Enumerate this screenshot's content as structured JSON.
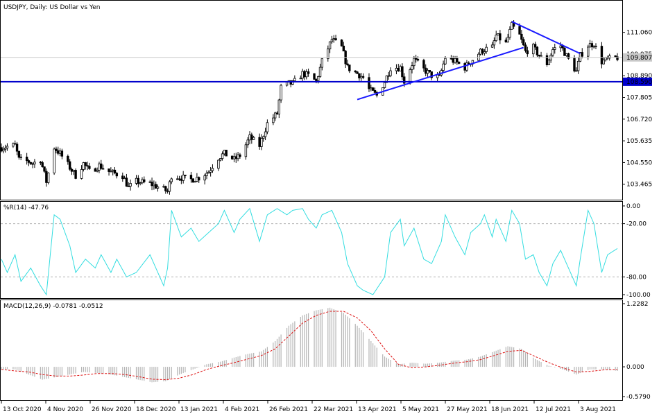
{
  "chart_data": [
    {
      "type": "candlestick",
      "symbol": "USDJPY",
      "timeframe": "Daily",
      "title": "USDJPY, Daily:  US Dollar vs Yen",
      "ylim": [
        102.9,
        112.4
      ],
      "yticks": [
        "111.060",
        "109.975",
        "108.890",
        "107.805",
        "106.720",
        "105.635",
        "104.550",
        "103.465"
      ],
      "current_price": "109.807",
      "horizontal_level": "108.590",
      "x_date_labels": [
        "13 Oct 2020",
        "4 Nov 2020",
        "26 Nov 2020",
        "18 Dec 2020",
        "13 Jan 2021",
        "4 Feb 2021",
        "26 Feb 2021",
        "22 Mar 2021",
        "13 Apr 2021",
        "5 May 2021",
        "27 May 2021",
        "18 Jun 2021",
        "12 Jul 2021",
        "3 Aug 2021"
      ],
      "close_points": [
        [
          "2020-10-13",
          105.3
        ],
        [
          "2020-10-16",
          105.35
        ],
        [
          "2020-10-20",
          105.4
        ],
        [
          "2020-10-22",
          104.7
        ],
        [
          "2020-10-27",
          104.6
        ],
        [
          "2020-10-29",
          104.5
        ],
        [
          "2020-11-02",
          104.7
        ],
        [
          "2020-11-05",
          103.6
        ],
        [
          "2020-11-09",
          105.3
        ],
        [
          "2020-11-12",
          105.0
        ],
        [
          "2020-11-17",
          104.3
        ],
        [
          "2020-11-20",
          103.9
        ],
        [
          "2020-11-24",
          104.5
        ],
        [
          "2020-11-27",
          104.1
        ],
        [
          "2020-12-02",
          104.4
        ],
        [
          "2020-12-07",
          104.1
        ],
        [
          "2020-12-10",
          104.0
        ],
        [
          "2020-12-14",
          103.9
        ],
        [
          "2020-12-17",
          103.3
        ],
        [
          "2020-12-21",
          103.6
        ],
        [
          "2020-12-28",
          103.5
        ],
        [
          "2021-01-04",
          103.2
        ],
        [
          "2021-01-06",
          103.1
        ],
        [
          "2021-01-08",
          103.9
        ],
        [
          "2021-01-13",
          103.8
        ],
        [
          "2021-01-18",
          103.7
        ],
        [
          "2021-01-22",
          103.8
        ],
        [
          "2021-01-27",
          104.1
        ],
        [
          "2021-02-01",
          104.8
        ],
        [
          "2021-02-04",
          105.0
        ],
        [
          "2021-02-09",
          104.7
        ],
        [
          "2021-02-12",
          104.9
        ],
        [
          "2021-02-17",
          105.8
        ],
        [
          "2021-02-22",
          105.4
        ],
        [
          "2021-02-26",
          106.5
        ],
        [
          "2021-03-03",
          107.0
        ],
        [
          "2021-03-05",
          108.3
        ],
        [
          "2021-03-09",
          108.5
        ],
        [
          "2021-03-11",
          108.5
        ],
        [
          "2021-03-16",
          109.0
        ],
        [
          "2021-03-19",
          108.9
        ],
        [
          "2021-03-23",
          108.6
        ],
        [
          "2021-03-26",
          109.6
        ],
        [
          "2021-03-31",
          110.7
        ],
        [
          "2021-04-05",
          110.3
        ],
        [
          "2021-04-08",
          109.3
        ],
        [
          "2021-04-13",
          109.0
        ],
        [
          "2021-04-16",
          108.8
        ],
        [
          "2021-04-19",
          108.2
        ],
        [
          "2021-04-23",
          107.9
        ],
        [
          "2021-04-27",
          108.6
        ],
        [
          "2021-04-30",
          109.3
        ],
        [
          "2021-05-05",
          109.3
        ],
        [
          "2021-05-07",
          108.6
        ],
        [
          "2021-05-12",
          109.7
        ],
        [
          "2021-05-17",
          109.2
        ],
        [
          "2021-05-21",
          108.9
        ],
        [
          "2021-05-25",
          108.8
        ],
        [
          "2021-05-28",
          109.8
        ],
        [
          "2021-06-02",
          109.6
        ],
        [
          "2021-06-07",
          109.3
        ],
        [
          "2021-06-10",
          109.6
        ],
        [
          "2021-06-15",
          110.1
        ],
        [
          "2021-06-17",
          110.2
        ],
        [
          "2021-06-21",
          110.3
        ],
        [
          "2021-06-23",
          110.9
        ],
        [
          "2021-06-28",
          110.5
        ],
        [
          "2021-07-01",
          111.4
        ],
        [
          "2021-07-05",
          110.9
        ],
        [
          "2021-07-08",
          110.1
        ],
        [
          "2021-07-12",
          110.3
        ],
        [
          "2021-07-15",
          109.9
        ],
        [
          "2021-07-19",
          109.5
        ],
        [
          "2021-07-22",
          110.2
        ],
        [
          "2021-07-26",
          110.4
        ],
        [
          "2021-07-30",
          109.7
        ],
        [
          "2021-08-03",
          109.1
        ],
        [
          "2021-08-05",
          109.9
        ],
        [
          "2021-08-09",
          110.4
        ],
        [
          "2021-08-12",
          110.5
        ],
        [
          "2021-08-16",
          109.6
        ],
        [
          "2021-08-19",
          109.7
        ],
        [
          "2021-08-24",
          109.8
        ]
      ],
      "trendlines": [
        {
          "from": [
            "2021-04-13",
            107.7
          ],
          "to": [
            "2021-07-07",
            110.3
          ]
        },
        {
          "from": [
            "2021-07-01",
            111.6
          ],
          "to": [
            "2021-08-05",
            110.0
          ]
        }
      ]
    },
    {
      "type": "line",
      "indicator": "%R(14)",
      "label": "%R(14) -47.76",
      "current_value": "-47.76",
      "ylim": [
        -100,
        0
      ],
      "ytick_labels": [
        "0.00",
        "-20.00",
        "-80.00",
        "-100.00"
      ],
      "levels": [
        -20,
        -80
      ],
      "points": [
        [
          "2020-10-13",
          -60
        ],
        [
          "2020-10-16",
          -75
        ],
        [
          "2020-10-20",
          -55
        ],
        [
          "2020-10-23",
          -85
        ],
        [
          "2020-10-28",
          -70
        ],
        [
          "2020-11-02",
          -90
        ],
        [
          "2020-11-05",
          -100
        ],
        [
          "2020-11-09",
          -10
        ],
        [
          "2020-11-12",
          -15
        ],
        [
          "2020-11-17",
          -45
        ],
        [
          "2020-11-20",
          -75
        ],
        [
          "2020-11-25",
          -60
        ],
        [
          "2020-11-30",
          -70
        ],
        [
          "2020-12-03",
          -55
        ],
        [
          "2020-12-08",
          -75
        ],
        [
          "2020-12-11",
          -60
        ],
        [
          "2020-12-16",
          -80
        ],
        [
          "2020-12-21",
          -75
        ],
        [
          "2020-12-28",
          -55
        ],
        [
          "2021-01-04",
          -90
        ],
        [
          "2021-01-06",
          -70
        ],
        [
          "2021-01-08",
          -5
        ],
        [
          "2021-01-13",
          -35
        ],
        [
          "2021-01-18",
          -25
        ],
        [
          "2021-01-22",
          -40
        ],
        [
          "2021-01-27",
          -30
        ],
        [
          "2021-02-01",
          -20
        ],
        [
          "2021-02-04",
          -5
        ],
        [
          "2021-02-09",
          -30
        ],
        [
          "2021-02-12",
          -15
        ],
        [
          "2021-02-17",
          -3
        ],
        [
          "2021-02-22",
          -40
        ],
        [
          "2021-02-26",
          -10
        ],
        [
          "2021-03-03",
          -3
        ],
        [
          "2021-03-08",
          -10
        ],
        [
          "2021-03-11",
          -5
        ],
        [
          "2021-03-16",
          -3
        ],
        [
          "2021-03-19",
          -15
        ],
        [
          "2021-03-23",
          -25
        ],
        [
          "2021-03-26",
          -10
        ],
        [
          "2021-03-31",
          -5
        ],
        [
          "2021-04-05",
          -30
        ],
        [
          "2021-04-08",
          -65
        ],
        [
          "2021-04-13",
          -90
        ],
        [
          "2021-04-16",
          -95
        ],
        [
          "2021-04-21",
          -100
        ],
        [
          "2021-04-27",
          -80
        ],
        [
          "2021-04-30",
          -30
        ],
        [
          "2021-05-05",
          -15
        ],
        [
          "2021-05-07",
          -45
        ],
        [
          "2021-05-12",
          -25
        ],
        [
          "2021-05-17",
          -60
        ],
        [
          "2021-05-21",
          -65
        ],
        [
          "2021-05-26",
          -40
        ],
        [
          "2021-05-28",
          -10
        ],
        [
          "2021-06-02",
          -35
        ],
        [
          "2021-06-07",
          -55
        ],
        [
          "2021-06-10",
          -30
        ],
        [
          "2021-06-15",
          -20
        ],
        [
          "2021-06-17",
          -10
        ],
        [
          "2021-06-21",
          -35
        ],
        [
          "2021-06-23",
          -15
        ],
        [
          "2021-06-28",
          -40
        ],
        [
          "2021-07-01",
          -5
        ],
        [
          "2021-07-05",
          -20
        ],
        [
          "2021-07-08",
          -60
        ],
        [
          "2021-07-12",
          -55
        ],
        [
          "2021-07-15",
          -75
        ],
        [
          "2021-07-19",
          -90
        ],
        [
          "2021-07-22",
          -65
        ],
        [
          "2021-07-26",
          -50
        ],
        [
          "2021-07-30",
          -70
        ],
        [
          "2021-08-03",
          -90
        ],
        [
          "2021-08-05",
          -60
        ],
        [
          "2021-08-09",
          -5
        ],
        [
          "2021-08-12",
          -20
        ],
        [
          "2021-08-16",
          -75
        ],
        [
          "2021-08-19",
          -55
        ],
        [
          "2021-08-24",
          -48
        ]
      ]
    },
    {
      "type": "bar-line",
      "indicator": "MACD(12,26,9)",
      "label": "MACD(12,26,9) -0.0781 -0.0512",
      "macd_value": "-0.0781",
      "signal_value": "-0.0512",
      "ylim": [
        -0.579,
        1.2282
      ],
      "ytick_labels": [
        "1.2282",
        "0.000",
        "-0.5790"
      ],
      "histogram": [
        [
          "2020-10-13",
          -0.05
        ],
        [
          "2020-10-20",
          -0.05
        ],
        [
          "2020-10-27",
          -0.15
        ],
        [
          "2020-11-03",
          -0.25
        ],
        [
          "2020-11-10",
          -0.2
        ],
        [
          "2020-11-17",
          -0.15
        ],
        [
          "2020-11-24",
          -0.1
        ],
        [
          "2020-12-01",
          -0.12
        ],
        [
          "2020-12-08",
          -0.15
        ],
        [
          "2020-12-15",
          -0.2
        ],
        [
          "2020-12-22",
          -0.25
        ],
        [
          "2020-12-29",
          -0.3
        ],
        [
          "2021-01-05",
          -0.28
        ],
        [
          "2021-01-12",
          -0.15
        ],
        [
          "2021-01-19",
          -0.05
        ],
        [
          "2021-01-26",
          0.05
        ],
        [
          "2021-02-02",
          0.1
        ],
        [
          "2021-02-09",
          0.18
        ],
        [
          "2021-02-16",
          0.25
        ],
        [
          "2021-02-23",
          0.3
        ],
        [
          "2021-03-02",
          0.5
        ],
        [
          "2021-03-09",
          0.8
        ],
        [
          "2021-03-16",
          1.0
        ],
        [
          "2021-03-23",
          1.1
        ],
        [
          "2021-03-30",
          1.15
        ],
        [
          "2021-04-06",
          1.05
        ],
        [
          "2021-04-13",
          0.8
        ],
        [
          "2021-04-20",
          0.5
        ],
        [
          "2021-04-27",
          0.2
        ],
        [
          "2021-05-04",
          0.05
        ],
        [
          "2021-05-11",
          0.08
        ],
        [
          "2021-05-18",
          0.06
        ],
        [
          "2021-05-25",
          0.08
        ],
        [
          "2021-06-01",
          0.12
        ],
        [
          "2021-06-08",
          0.14
        ],
        [
          "2021-06-15",
          0.2
        ],
        [
          "2021-06-22",
          0.3
        ],
        [
          "2021-06-29",
          0.4
        ],
        [
          "2021-07-06",
          0.35
        ],
        [
          "2021-07-13",
          0.15
        ],
        [
          "2021-07-20",
          0.02
        ],
        [
          "2021-07-27",
          -0.05
        ],
        [
          "2021-08-03",
          -0.15
        ],
        [
          "2021-08-10",
          -0.05
        ],
        [
          "2021-08-17",
          -0.05
        ],
        [
          "2021-08-24",
          -0.08
        ]
      ],
      "signal": [
        [
          "2020-10-13",
          -0.05
        ],
        [
          "2020-10-20",
          -0.08
        ],
        [
          "2020-10-27",
          -0.1
        ],
        [
          "2020-11-03",
          -0.15
        ],
        [
          "2020-11-10",
          -0.18
        ],
        [
          "2020-11-17",
          -0.18
        ],
        [
          "2020-11-24",
          -0.16
        ],
        [
          "2020-12-01",
          -0.13
        ],
        [
          "2020-12-08",
          -0.13
        ],
        [
          "2020-12-15",
          -0.15
        ],
        [
          "2020-12-22",
          -0.19
        ],
        [
          "2020-12-29",
          -0.24
        ],
        [
          "2021-01-05",
          -0.25
        ],
        [
          "2021-01-12",
          -0.22
        ],
        [
          "2021-01-19",
          -0.15
        ],
        [
          "2021-01-26",
          -0.05
        ],
        [
          "2021-02-02",
          0.02
        ],
        [
          "2021-02-09",
          0.08
        ],
        [
          "2021-02-16",
          0.15
        ],
        [
          "2021-02-23",
          0.22
        ],
        [
          "2021-03-02",
          0.35
        ],
        [
          "2021-03-09",
          0.6
        ],
        [
          "2021-03-16",
          0.85
        ],
        [
          "2021-03-23",
          1.0
        ],
        [
          "2021-03-30",
          1.08
        ],
        [
          "2021-04-06",
          1.08
        ],
        [
          "2021-04-13",
          0.95
        ],
        [
          "2021-04-20",
          0.7
        ],
        [
          "2021-04-27",
          0.35
        ],
        [
          "2021-05-04",
          0.05
        ],
        [
          "2021-05-11",
          -0.02
        ],
        [
          "2021-05-18",
          0.0
        ],
        [
          "2021-05-25",
          0.03
        ],
        [
          "2021-06-01",
          0.07
        ],
        [
          "2021-06-08",
          0.1
        ],
        [
          "2021-06-15",
          0.14
        ],
        [
          "2021-06-22",
          0.22
        ],
        [
          "2021-06-29",
          0.3
        ],
        [
          "2021-07-06",
          0.32
        ],
        [
          "2021-07-13",
          0.2
        ],
        [
          "2021-07-20",
          0.08
        ],
        [
          "2021-07-27",
          -0.02
        ],
        [
          "2021-08-03",
          -0.1
        ],
        [
          "2021-08-10",
          -0.09
        ],
        [
          "2021-08-17",
          -0.06
        ],
        [
          "2021-08-24",
          -0.05
        ]
      ]
    }
  ],
  "colors": {
    "background": "#ffffff",
    "axis": "#000000",
    "candle": "#000000",
    "level_line": "#0000cc",
    "trendline": "#1a1aff",
    "price_marker": "#c8c8c8",
    "williams_r": "#33dde0",
    "level_dash": "#b0b0b0",
    "macd_histogram": "#b4b4b4",
    "macd_signal": "#dd1111"
  }
}
